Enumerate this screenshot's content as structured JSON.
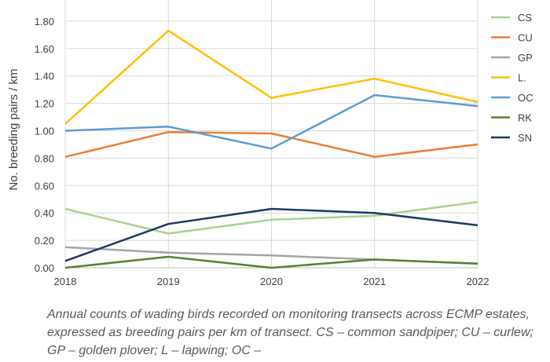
{
  "chart_data": {
    "type": "line",
    "title": "",
    "xlabel": "",
    "ylabel": "No. breeding pairs / km",
    "x": [
      "2018",
      "2019",
      "2020",
      "2021",
      "2022"
    ],
    "yticks": [
      "0.00",
      "0.20",
      "0.40",
      "0.60",
      "0.80",
      "1.00",
      "1.20",
      "1.40",
      "1.60",
      "1.80"
    ],
    "ylim": [
      0,
      2.0
    ],
    "grid": true,
    "legend": "right",
    "series": [
      {
        "name": "CS",
        "color": "#a9d18e",
        "values": [
          0.43,
          0.25,
          0.35,
          0.38,
          0.48
        ]
      },
      {
        "name": "CU",
        "color": "#ed7d31",
        "values": [
          0.81,
          0.99,
          0.98,
          0.81,
          0.9
        ]
      },
      {
        "name": "GP",
        "color": "#a5a5a5",
        "values": [
          0.15,
          0.11,
          0.09,
          0.06,
          0.03
        ]
      },
      {
        "name": "L.",
        "color": "#ffc000",
        "values": [
          1.05,
          1.73,
          1.24,
          1.38,
          1.21
        ]
      },
      {
        "name": "OC",
        "color": "#5b9bd5",
        "values": [
          1.0,
          1.03,
          0.87,
          1.26,
          1.18
        ]
      },
      {
        "name": "RK",
        "color": "#548235",
        "values": [
          0.0,
          0.08,
          0.0,
          0.06,
          0.03
        ]
      },
      {
        "name": "SN",
        "color": "#1f3864",
        "values": [
          0.05,
          0.32,
          0.43,
          0.4,
          0.31
        ]
      }
    ]
  },
  "caption": "Annual counts of wading birds recorded on monitoring transects across ECMP estates, expressed as breeding pairs per km of transect. CS – common sandpiper; CU – curlew; GP – golden plover; L – lapwing; OC –"
}
